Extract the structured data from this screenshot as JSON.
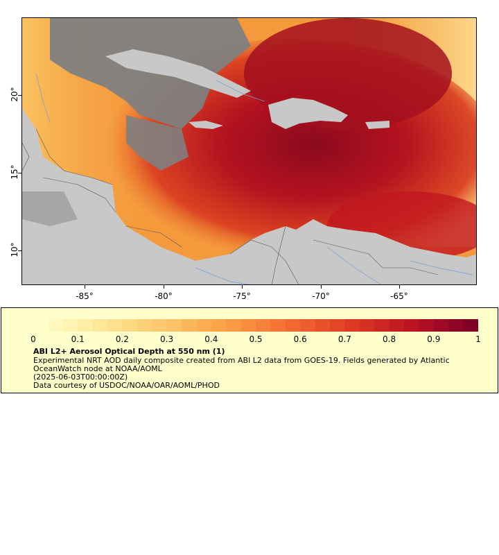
{
  "map": {
    "lon_ticks": [
      "-85°",
      "-80°",
      "-75°",
      "-70°",
      "-65°"
    ],
    "lat_ticks": [
      "20°",
      "15°",
      "10°"
    ],
    "colors": {
      "land": "#c8c8c8",
      "nodata": "#808080",
      "low": "#fde08a",
      "mid": "#f4862f",
      "high": "#c81a1a",
      "veryhigh": "#8b0a1e",
      "coastline": "#555555",
      "rivers": "#6fa0d8"
    }
  },
  "legend": {
    "ticks": [
      "0",
      "0.1",
      "0.2",
      "0.3",
      "0.4",
      "0.5",
      "0.6",
      "0.7",
      "0.8",
      "0.9",
      "1"
    ],
    "title": "ABI L2+ Aerosol Optical Depth at 550 nm (1)",
    "description": "Experimental NRT AOD daily composite created from ABI L2 data from GOES-19. Fields generated by Atlantic OceanWatch node at NOAA/AOML",
    "date": "(2025-06-03T00:00:00Z)",
    "credit": "Data courtesy of USDOC/NOAA/OAR/AOML/PHOD"
  }
}
